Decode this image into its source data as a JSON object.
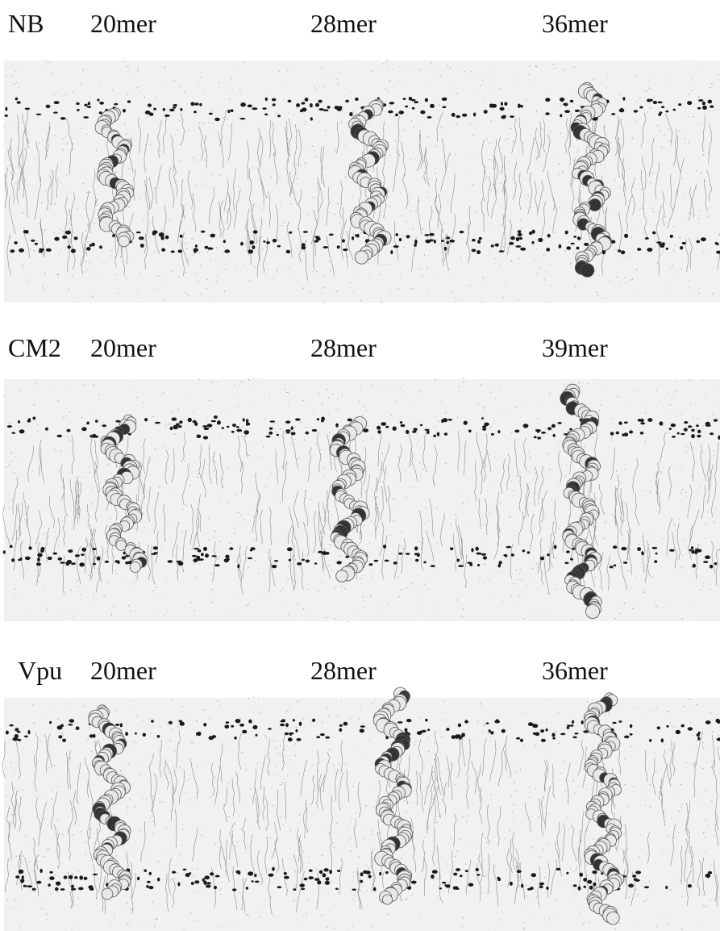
{
  "panels": [
    {
      "label": "NB",
      "lengths": [
        "20mer",
        "28mer",
        "36mer"
      ]
    },
    {
      "label": "CM2",
      "lengths": [
        "20mer",
        "28mer",
        "39mer"
      ]
    },
    {
      "label": "Vpu",
      "lengths": [
        "20mer",
        "28mer",
        "36mer"
      ]
    }
  ]
}
